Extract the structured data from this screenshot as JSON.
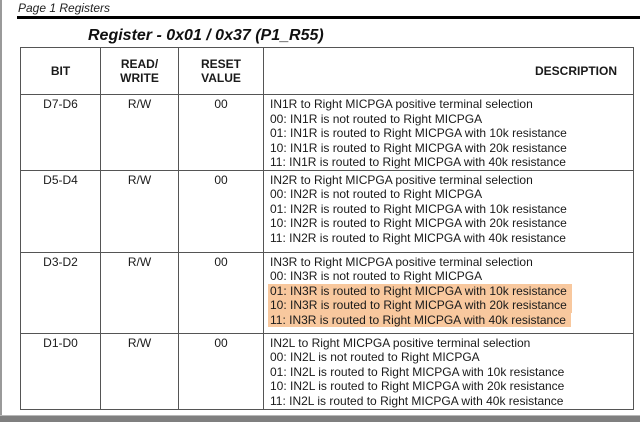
{
  "page": {
    "header_label": "Page 1 Registers",
    "title": "Register - 0x01 / 0x37 (P1_R55)"
  },
  "colors": {
    "highlight": "#f8c89e",
    "table_border": "#555555",
    "text": "#1a1a1a",
    "top_rule": "#000000",
    "bottom_band": "#7f7f7f"
  },
  "table": {
    "columns": [
      {
        "label": "BIT"
      },
      {
        "label": "READ/\nWRITE"
      },
      {
        "label": "RESET\nVALUE"
      },
      {
        "label": "DESCRIPTION"
      }
    ],
    "rows": [
      {
        "bit": "D7-D6",
        "read_write": "R/W",
        "reset_value": "00",
        "description": [
          {
            "text": "IN1R to Right MICPGA positive terminal selection",
            "highlighted": false
          },
          {
            "text": "00: IN1R is not routed to Right MICPGA",
            "highlighted": false
          },
          {
            "text": "01: IN1R is routed to Right MICPGA with 10k resistance",
            "highlighted": false
          },
          {
            "text": "10: IN1R is routed to Right MICPGA with 20k resistance",
            "highlighted": false
          },
          {
            "text": "11: IN1R is routed to Right MICPGA with 40k resistance",
            "highlighted": false
          }
        ]
      },
      {
        "bit": "D5-D4",
        "read_write": "R/W",
        "reset_value": "00",
        "description": [
          {
            "text": "IN2R to Right MICPGA positive terminal selection",
            "highlighted": false
          },
          {
            "text": "00: IN2R is not routed to Right MICPGA",
            "highlighted": false
          },
          {
            "text": "01: IN2R is routed to Right MICPGA with 10k resistance",
            "highlighted": false
          },
          {
            "text": "10: IN2R is routed to Right MICPGA with 20k resistance",
            "highlighted": false
          },
          {
            "text": "11: IN2R is routed to Right MICPGA with 40k resistance",
            "highlighted": false
          }
        ]
      },
      {
        "bit": "D3-D2",
        "read_write": "R/W",
        "reset_value": "00",
        "description": [
          {
            "text": "IN3R to Right MICPGA positive terminal selection",
            "highlighted": false
          },
          {
            "text": "00: IN3R is not routed to Right MICPGA",
            "highlighted": false
          },
          {
            "text": "01: IN3R is routed to Right MICPGA with 10k resistance",
            "highlighted": true
          },
          {
            "text": "10: IN3R is routed to Right MICPGA with 20k resistance",
            "highlighted": true
          },
          {
            "text": "11: IN3R is routed to Right MICPGA with 40k resistance",
            "highlighted": true
          }
        ]
      },
      {
        "bit": "D1-D0",
        "read_write": "R/W",
        "reset_value": "00",
        "description": [
          {
            "text": "IN2L to Right MICPGA positive terminal selection",
            "highlighted": false
          },
          {
            "text": "00: IN2L is not routed to Right MICPGA",
            "highlighted": false
          },
          {
            "text": "01: IN2L is routed to Right MICPGA with 10k resistance",
            "highlighted": false
          },
          {
            "text": "10: IN2L is routed to Right MICPGA with 20k resistance",
            "highlighted": false
          },
          {
            "text": "11: IN2L is routed to Right MICPGA with 40k resistance",
            "highlighted": false
          }
        ]
      }
    ]
  }
}
